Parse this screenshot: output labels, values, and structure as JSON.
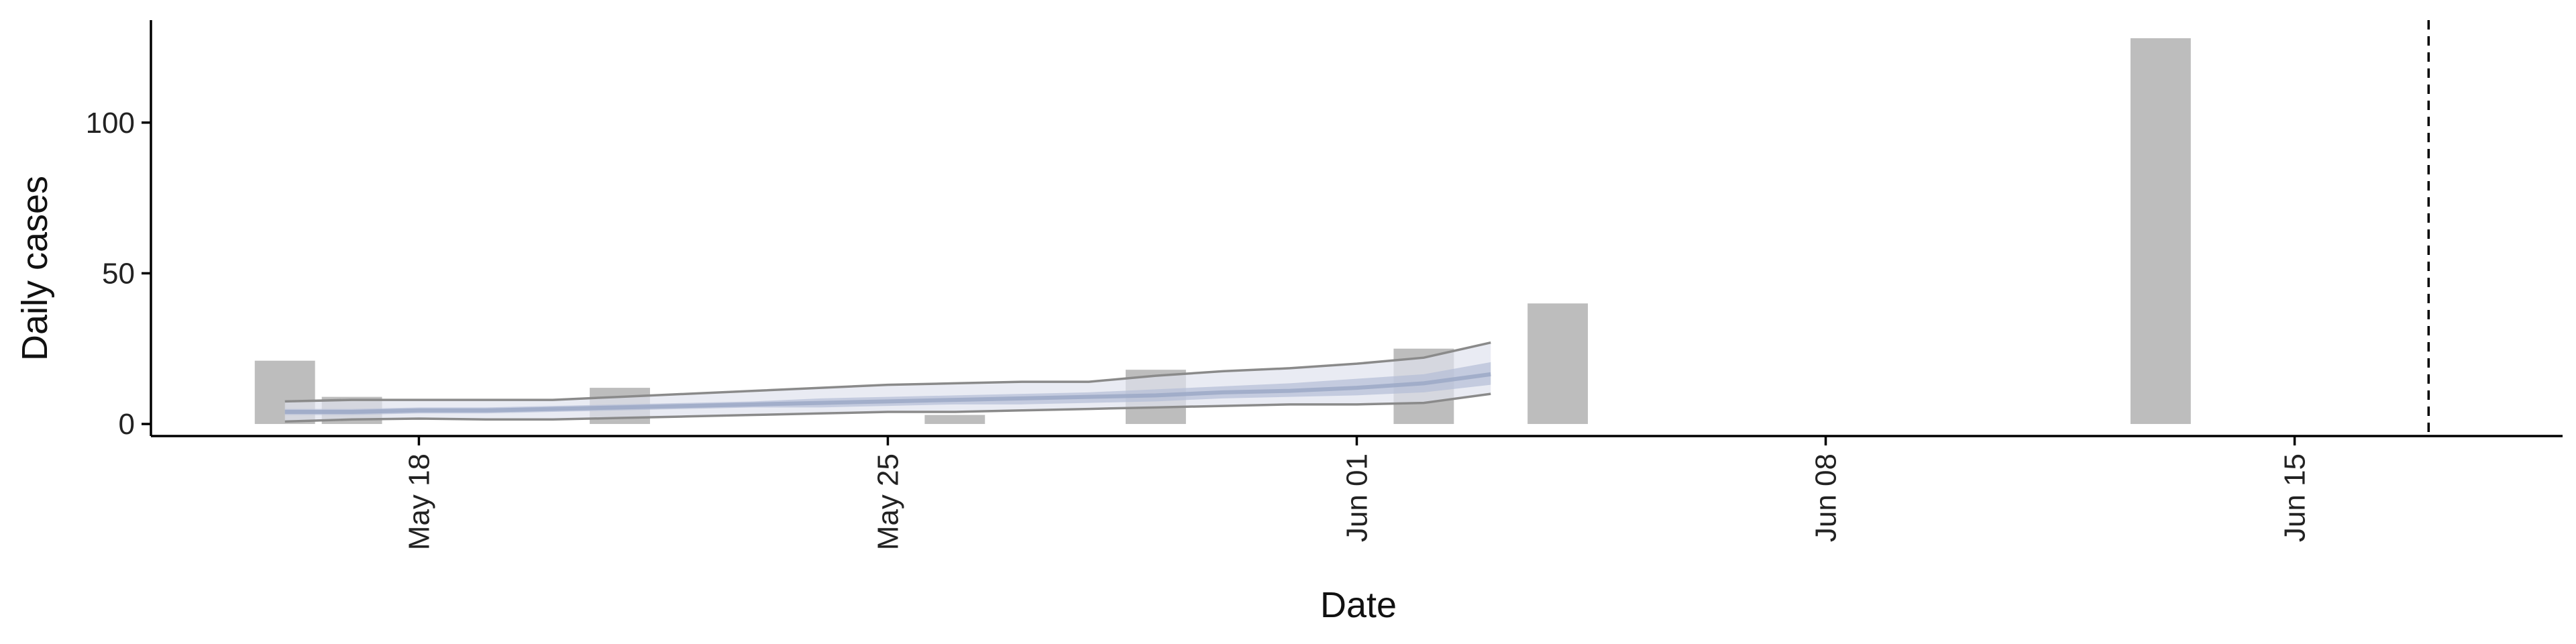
{
  "chart_data": {
    "type": "bar",
    "xlabel": "Date",
    "ylabel": "Daily cases",
    "x_range": [
      "2020-05-14",
      "2020-06-19"
    ],
    "ylim": [
      -4,
      134
    ],
    "x_ticks": [
      {
        "date": "2020-05-18",
        "label": "May 18"
      },
      {
        "date": "2020-05-25",
        "label": "May 25"
      },
      {
        "date": "2020-06-01",
        "label": "Jun 01"
      },
      {
        "date": "2020-06-08",
        "label": "Jun 08"
      },
      {
        "date": "2020-06-15",
        "label": "Jun 15"
      }
    ],
    "y_ticks": [
      0,
      50,
      100
    ],
    "bars": [
      {
        "date": "2020-05-16",
        "value": 21
      },
      {
        "date": "2020-05-17",
        "value": 9
      },
      {
        "date": "2020-05-21",
        "value": 12
      },
      {
        "date": "2020-05-26",
        "value": 3
      },
      {
        "date": "2020-05-29",
        "value": 18
      },
      {
        "date": "2020-06-02",
        "value": 25
      },
      {
        "date": "2020-06-04",
        "value": 40
      },
      {
        "date": "2020-06-13",
        "value": 128
      }
    ],
    "band_dates": [
      "2020-05-16",
      "2020-05-17",
      "2020-05-18",
      "2020-05-19",
      "2020-05-20",
      "2020-05-21",
      "2020-05-22",
      "2020-05-23",
      "2020-05-24",
      "2020-05-25",
      "2020-05-26",
      "2020-05-27",
      "2020-05-28",
      "2020-05-29",
      "2020-05-30",
      "2020-05-31",
      "2020-06-01",
      "2020-06-02",
      "2020-06-03"
    ],
    "outer_band": {
      "upper": [
        7.5,
        8,
        8,
        8,
        8,
        9,
        10,
        11,
        12,
        13,
        13.5,
        14,
        14,
        16,
        17.5,
        18.5,
        20,
        22,
        27
      ],
      "lower": [
        0.8,
        1.5,
        1.8,
        1.5,
        1.5,
        2,
        2.5,
        3,
        3.5,
        4,
        4,
        4.5,
        5,
        5.5,
        6,
        6.5,
        6.5,
        7,
        10
      ]
    },
    "inner_band": {
      "upper": [
        5,
        5,
        5.5,
        5.5,
        6,
        6.5,
        7,
        7.5,
        8.5,
        9,
        9.5,
        10,
        10.5,
        11.5,
        12.5,
        13.5,
        15,
        16.5,
        20.5
      ],
      "lower": [
        3,
        3,
        3.5,
        3.5,
        4,
        4.5,
        5,
        5.5,
        5.5,
        6,
        6.5,
        6.5,
        7,
        7.5,
        8.5,
        9,
        9.5,
        10.5,
        13
      ]
    },
    "median": [
      4,
      4,
      4.5,
      4.5,
      5,
      5.5,
      6,
      6.5,
      7,
      7.5,
      8,
      8.5,
      9,
      9.5,
      10.5,
      11,
      12,
      13.5,
      16.5
    ],
    "vline_date": "2020-06-17",
    "colors": {
      "bar": "#bdbdbd",
      "outer_band": "#dfe3ee",
      "inner_band": "#b3bdd5",
      "median": "#9aa6c4",
      "band_edge": "#8a8a8a",
      "axis": "#000000"
    }
  }
}
